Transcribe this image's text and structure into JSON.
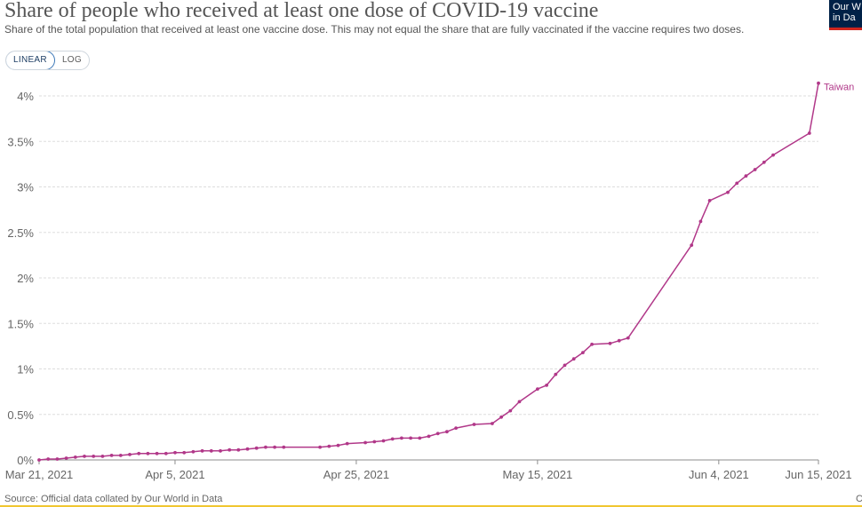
{
  "header": {
    "title": "Share of people who received at least one dose of COVID-19 vaccine",
    "subtitle": "Share of the total population that received at least one vaccine dose. This may not equal the share that are fully vaccinated if the vaccine requires two doses."
  },
  "logo": {
    "text": "Our W\nin Da",
    "background": "#002147",
    "accent": "#ce261e"
  },
  "scale_toggle": {
    "linear_label": "LINEAR",
    "log_label": "LOG",
    "selected": "LINEAR"
  },
  "footer": {
    "source": "Source: Official data collated by Our World in Data",
    "edge_text": "C"
  },
  "chart_data": {
    "type": "line",
    "title": "Share of people who received at least one dose of COVID-19 vaccine",
    "xlabel": "",
    "ylabel": "",
    "y_tick_labels": [
      "0%",
      "0.5%",
      "1%",
      "1.5%",
      "2%",
      "2.5%",
      "3%",
      "3.5%",
      "4%"
    ],
    "y_ticks": [
      0,
      0.5,
      1,
      1.5,
      2,
      2.5,
      3,
      3.5,
      4
    ],
    "ylim": [
      0,
      4.1
    ],
    "x_tick_labels": [
      "Mar 21, 2021",
      "Apr 5, 2021",
      "Apr 25, 2021",
      "May 15, 2021",
      "Jun 4, 2021",
      "Jun 15, 2021"
    ],
    "x_ticks": [
      "2021-03-21",
      "2021-04-05",
      "2021-04-25",
      "2021-05-15",
      "2021-06-04",
      "2021-06-15"
    ],
    "xlim": [
      "2021-03-21",
      "2021-06-15"
    ],
    "grid": true,
    "legend": "end-of-line label",
    "series": [
      {
        "name": "Taiwan",
        "color": "#b13889",
        "x": [
          "2021-03-21",
          "2021-03-22",
          "2021-03-23",
          "2021-03-24",
          "2021-03-25",
          "2021-03-26",
          "2021-03-27",
          "2021-03-28",
          "2021-03-29",
          "2021-03-30",
          "2021-03-31",
          "2021-04-01",
          "2021-04-02",
          "2021-04-03",
          "2021-04-04",
          "2021-04-05",
          "2021-04-06",
          "2021-04-07",
          "2021-04-08",
          "2021-04-09",
          "2021-04-10",
          "2021-04-11",
          "2021-04-12",
          "2021-04-13",
          "2021-04-14",
          "2021-04-15",
          "2021-04-16",
          "2021-04-17",
          "2021-04-21",
          "2021-04-22",
          "2021-04-23",
          "2021-04-24",
          "2021-04-26",
          "2021-04-27",
          "2021-04-28",
          "2021-04-29",
          "2021-04-30",
          "2021-05-01",
          "2021-05-02",
          "2021-05-03",
          "2021-05-04",
          "2021-05-05",
          "2021-05-06",
          "2021-05-08",
          "2021-05-10",
          "2021-05-11",
          "2021-05-12",
          "2021-05-13",
          "2021-05-15",
          "2021-05-16",
          "2021-05-17",
          "2021-05-18",
          "2021-05-19",
          "2021-05-20",
          "2021-05-21",
          "2021-05-23",
          "2021-05-24",
          "2021-05-25",
          "2021-06-01",
          "2021-06-02",
          "2021-06-03",
          "2021-06-05",
          "2021-06-06",
          "2021-06-07",
          "2021-06-08",
          "2021-06-09",
          "2021-06-10",
          "2021-06-14",
          "2021-06-15"
        ],
        "values": [
          0.0,
          0.01,
          0.01,
          0.02,
          0.03,
          0.04,
          0.04,
          0.04,
          0.05,
          0.05,
          0.06,
          0.07,
          0.07,
          0.07,
          0.07,
          0.08,
          0.08,
          0.09,
          0.1,
          0.1,
          0.1,
          0.11,
          0.11,
          0.12,
          0.13,
          0.14,
          0.14,
          0.14,
          0.14,
          0.15,
          0.16,
          0.18,
          0.19,
          0.2,
          0.21,
          0.23,
          0.24,
          0.24,
          0.24,
          0.26,
          0.29,
          0.31,
          0.35,
          0.39,
          0.4,
          0.47,
          0.54,
          0.64,
          0.78,
          0.82,
          0.94,
          1.04,
          1.11,
          1.18,
          1.27,
          1.28,
          1.31,
          1.34,
          2.36,
          2.62,
          2.85,
          2.94,
          3.04,
          3.12,
          3.19,
          3.27,
          3.35,
          3.59,
          4.14
        ]
      }
    ]
  }
}
